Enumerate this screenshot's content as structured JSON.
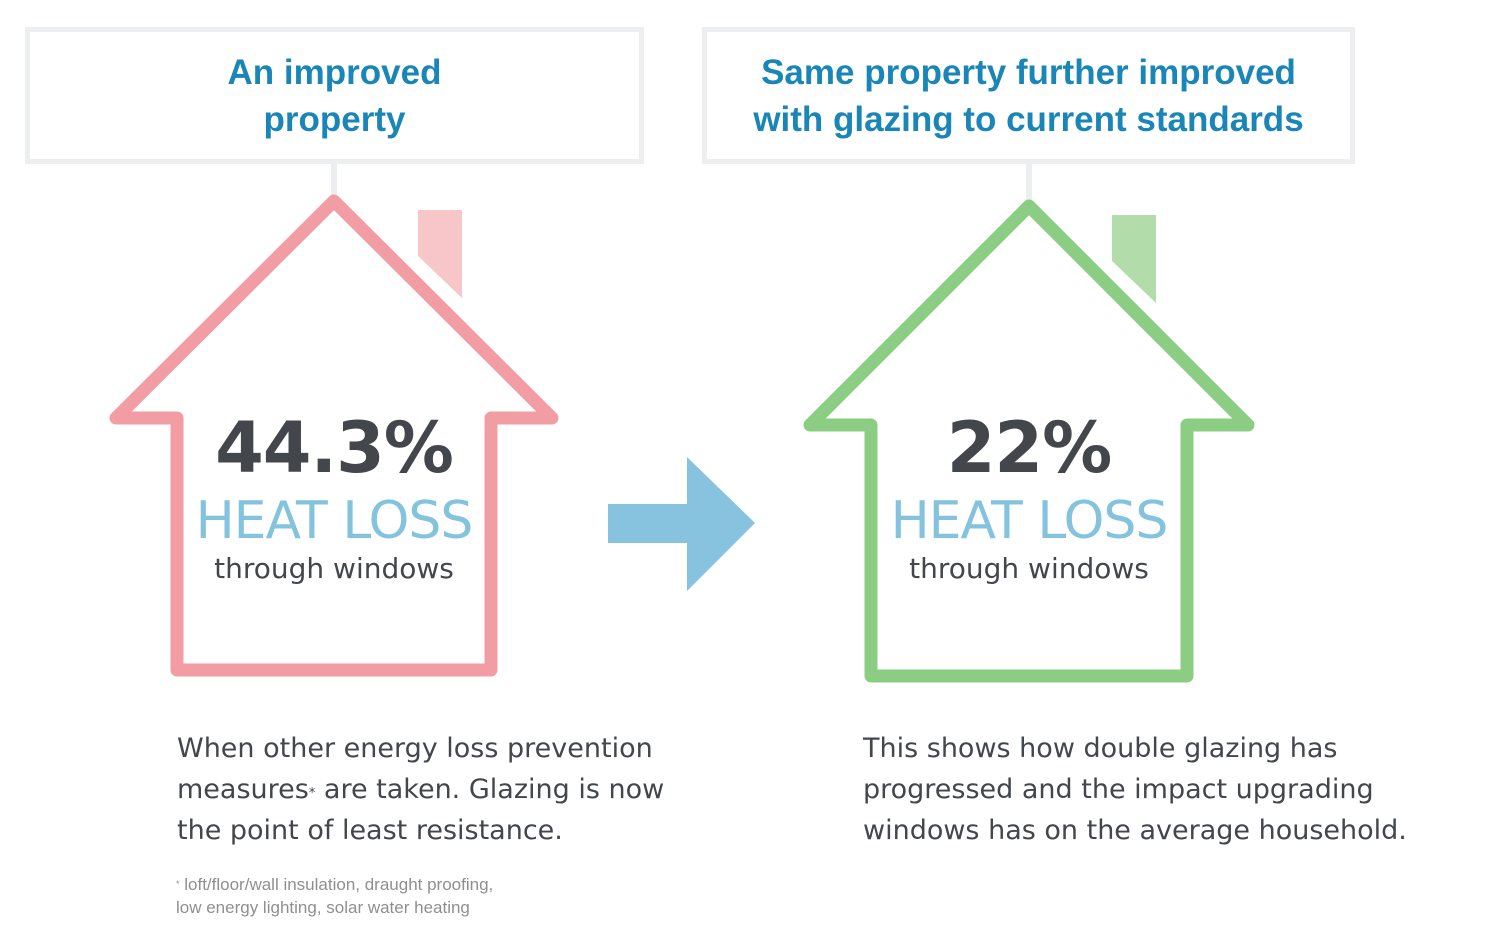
{
  "left": {
    "title_line1": "An improved",
    "title_line2": "property",
    "percent": "44.3%",
    "heat_loss": "HEAT LOSS",
    "through": "through windows",
    "color": "#f29ca3",
    "chimney_color": "#f6c6c9",
    "desc_line1": "When other energy loss prevention",
    "desc_line2_a": "measures",
    "desc_line2_b": " are taken. Glazing is now",
    "desc_line3": "the point of least resistance.",
    "asterisk": "*"
  },
  "right": {
    "title_line1": "Same property further improved",
    "title_line2": "with glazing to current standards",
    "percent": "22%",
    "heat_loss": "HEAT LOSS",
    "through": "through windows",
    "color": "#8ccd84",
    "chimney_color": "#b2ddaa",
    "desc_line1": "This shows how double glazing has",
    "desc_line2": "progressed and the impact upgrading",
    "desc_line3": "windows has on the average household."
  },
  "arrow": {
    "color": "#87c3de",
    "icon": "right-arrow-icon"
  },
  "footnote": {
    "asterisk": "*",
    "line1": "loft/floor/wall insulation, draught proofing,",
    "line2": "low energy lighting, solar water heating"
  }
}
